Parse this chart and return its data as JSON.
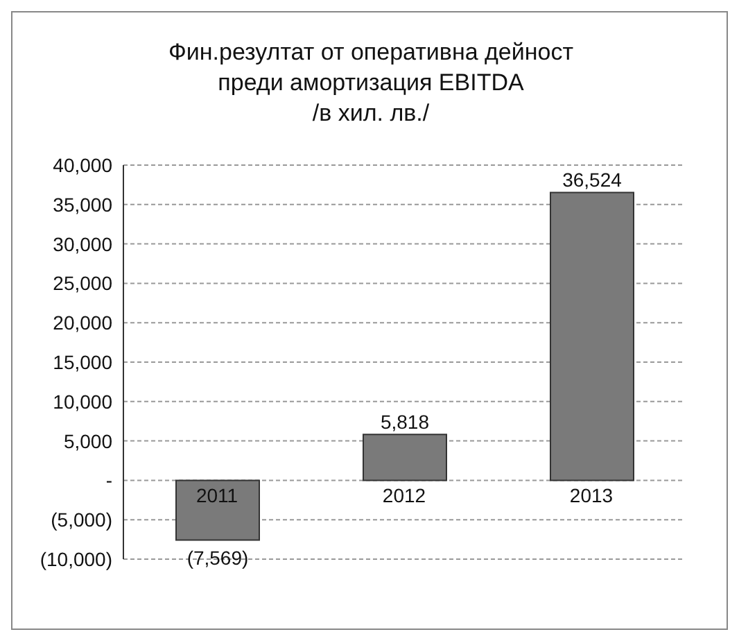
{
  "chart_data": {
    "type": "bar",
    "title": "Фин.резултат от оперативна дейност\nпреди амортизация EBITDA\n/в хил. лв./",
    "categories": [
      "2011",
      "2012",
      "2013"
    ],
    "values": [
      -7569,
      5818,
      36524
    ],
    "value_labels": [
      "(7,569)",
      "5,818",
      "36,524"
    ],
    "color": "#7a7a7a",
    "ylim": [
      -10000,
      40000
    ],
    "yticks": [
      {
        "value": -10000,
        "label": "(10,000)"
      },
      {
        "value": -5000,
        "label": "(5,000)"
      },
      {
        "value": 0,
        "label": "-"
      },
      {
        "value": 5000,
        "label": "5,000"
      },
      {
        "value": 10000,
        "label": "10,000"
      },
      {
        "value": 15000,
        "label": "15,000"
      },
      {
        "value": 20000,
        "label": "20,000"
      },
      {
        "value": 25000,
        "label": "25,000"
      },
      {
        "value": 30000,
        "label": "30,000"
      },
      {
        "value": 35000,
        "label": "35,000"
      },
      {
        "value": 40000,
        "label": "40,000"
      }
    ],
    "grid": "y"
  }
}
